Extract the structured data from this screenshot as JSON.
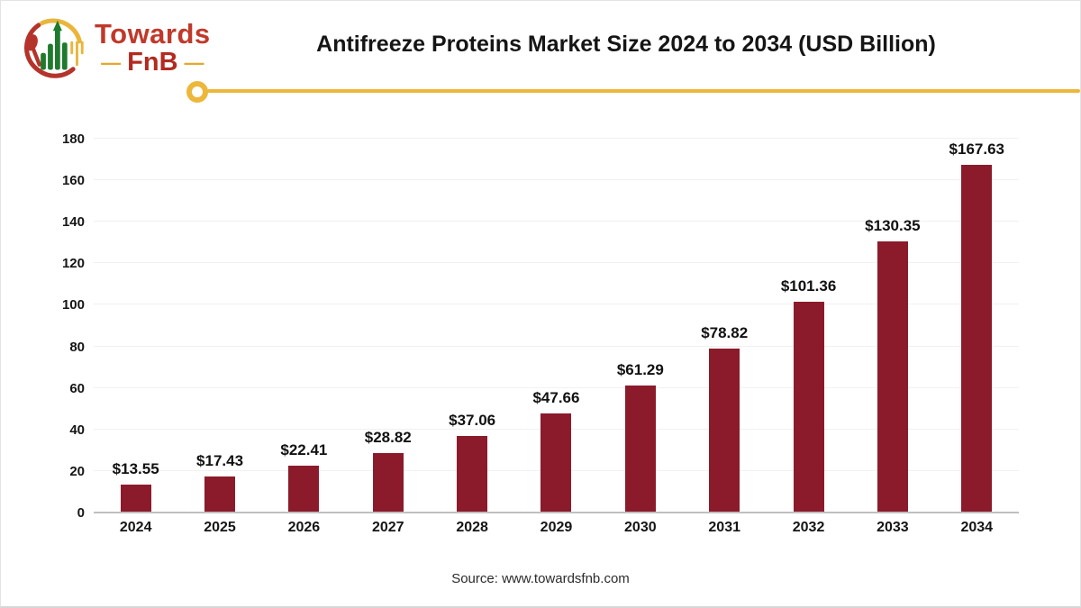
{
  "header": {
    "logo": {
      "line1": "Towards",
      "line2": "FnB",
      "dash": "—"
    },
    "title": "Antifreeze Proteins Market Size 2024 to 2034 (USD Billion)"
  },
  "chart_data": {
    "type": "bar",
    "title": "Antifreeze Proteins Market Size 2024 to 2034 (USD Billion)",
    "categories": [
      "2024",
      "2025",
      "2026",
      "2027",
      "2028",
      "2029",
      "2030",
      "2031",
      "2032",
      "2033",
      "2034"
    ],
    "values": [
      13.55,
      17.43,
      22.41,
      28.82,
      37.06,
      47.66,
      61.29,
      78.82,
      101.36,
      130.35,
      167.63
    ],
    "value_prefix": "$",
    "data_labels": [
      "$13.55",
      "$17.43",
      "$22.41",
      "$28.82",
      "$37.06",
      "$47.66",
      "$61.29",
      "$78.82",
      "$101.36",
      "$130.35",
      "$167.63"
    ],
    "xlabel": "",
    "ylabel": "",
    "ylim": [
      0,
      180
    ],
    "yticks": [
      0,
      20,
      40,
      60,
      80,
      100,
      120,
      140,
      160,
      180
    ],
    "grid": true,
    "legend": "none",
    "bar_color": "#8b1b2b"
  },
  "footer": {
    "source": "Source: www.towardsfnb.com"
  },
  "colors": {
    "accent_yellow": "#edb73c",
    "bar_maroon": "#8b1b2b",
    "logo_red": "#c0392b",
    "logo_green": "#1f7a2d",
    "axis_gray": "#bfbfbf",
    "gridline_gray": "#f1f1f1"
  }
}
